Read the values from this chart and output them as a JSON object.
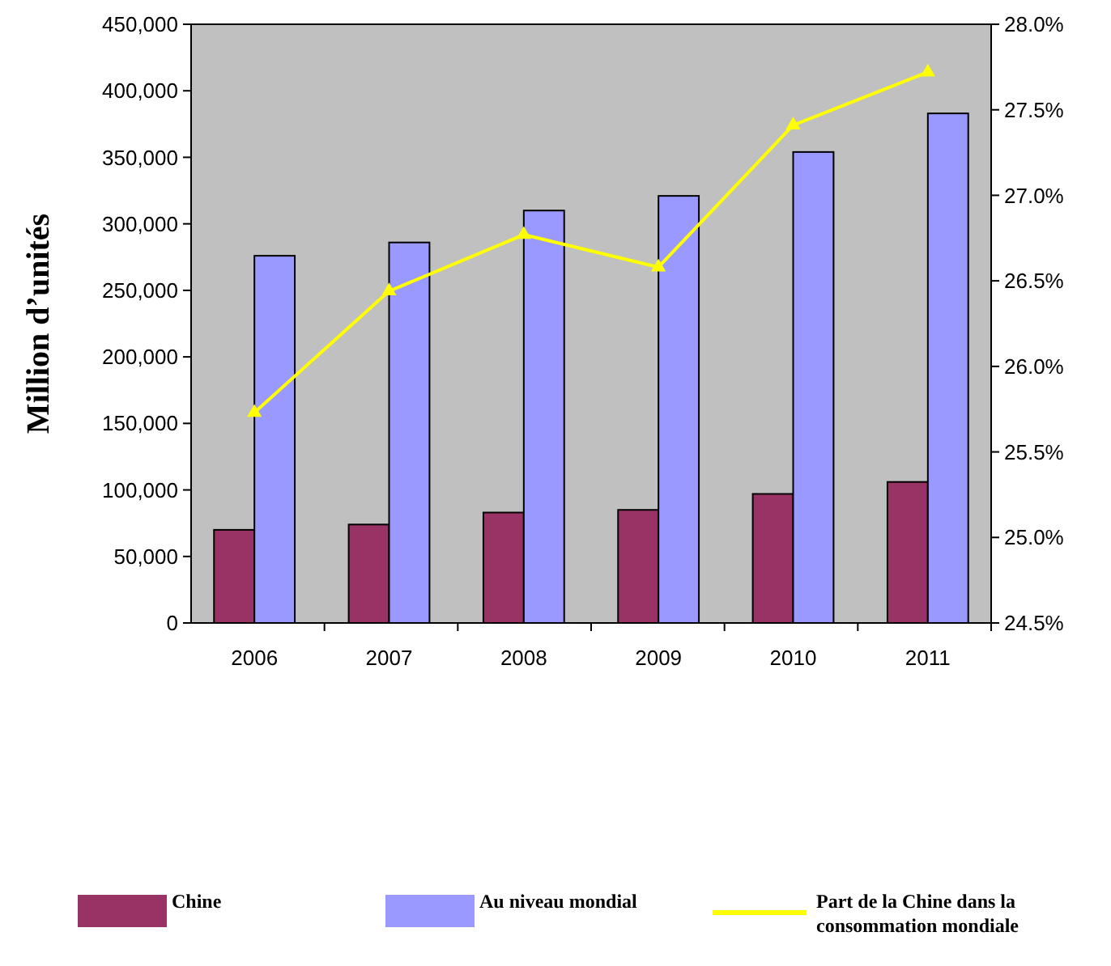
{
  "chart_data": {
    "type": "bar",
    "ylabel": "Million d’unités",
    "categories": [
      "2006",
      "2007",
      "2008",
      "2009",
      "2010",
      "2011"
    ],
    "series": [
      {
        "name": "Chine",
        "color": "#993366",
        "values": [
          70000,
          74000,
          83000,
          85000,
          97000,
          106000
        ]
      },
      {
        "name": "Au niveau mondial",
        "color": "#9999ff",
        "values": [
          276000,
          286000,
          310000,
          321000,
          354000,
          383000
        ]
      },
      {
        "name": "Part de la Chine dans la consommation mondiale",
        "type": "line",
        "axis": "y2",
        "color": "#ffff00",
        "marker": "triangle",
        "values": [
          25.73,
          26.44,
          26.77,
          26.58,
          27.41,
          27.72
        ]
      }
    ],
    "ylim": [
      0,
      450000
    ],
    "yticks": [
      {
        "value": 0,
        "label": "0"
      },
      {
        "value": 50000,
        "label": "50,000"
      },
      {
        "value": 100000,
        "label": "100,000"
      },
      {
        "value": 150000,
        "label": "150,000"
      },
      {
        "value": 200000,
        "label": "200,000"
      },
      {
        "value": 250000,
        "label": "250,000"
      },
      {
        "value": 300000,
        "label": "300,000"
      },
      {
        "value": 350000,
        "label": "350,000"
      },
      {
        "value": 400000,
        "label": "400,000"
      },
      {
        "value": 450000,
        "label": "450,000"
      }
    ],
    "y2lim": [
      24.5,
      28.0
    ],
    "y2ticks": [
      {
        "value": 24.5,
        "label": "24.5%"
      },
      {
        "value": 25.0,
        "label": "25.0%"
      },
      {
        "value": 25.5,
        "label": "25.5%"
      },
      {
        "value": 26.0,
        "label": "26.0%"
      },
      {
        "value": 26.5,
        "label": "26.5%"
      },
      {
        "value": 27.0,
        "label": "27.0%"
      },
      {
        "value": 27.5,
        "label": "27.5%"
      },
      {
        "value": 28.0,
        "label": "28.0%"
      }
    ],
    "legend": "bottom",
    "grid": false
  }
}
